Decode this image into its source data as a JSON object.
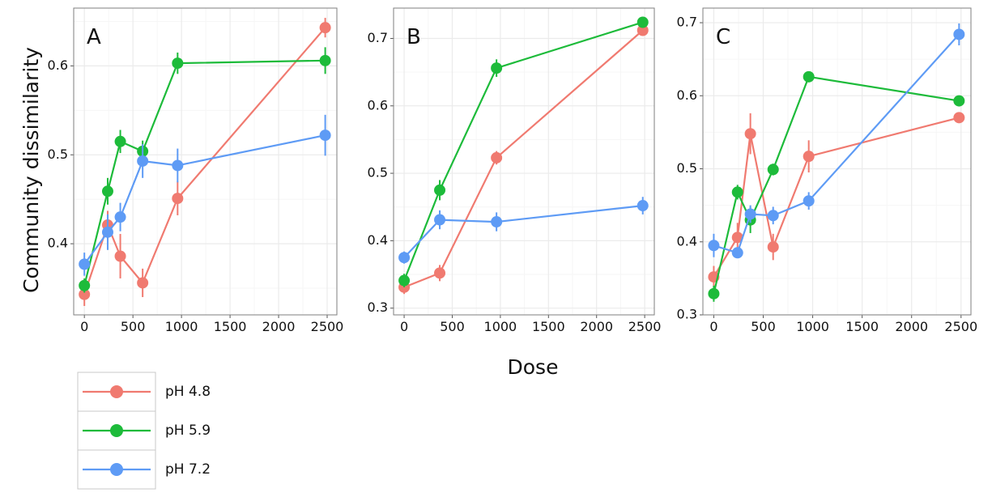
{
  "figure": {
    "ylabel": "Community dissimilarity",
    "xlabel": "Dose"
  },
  "colors": {
    "pH 4.8": "#F07A70",
    "pH 5.9": "#1DBB3A",
    "pH 7.2": "#5E9BF5",
    "grid_major": "#EBEBEB",
    "grid_minor": "#F6F6F6",
    "frame": "#7F7F7F",
    "tick_text": "#111111"
  },
  "legend": {
    "placement": "below panel A",
    "entries": [
      "pH 4.8",
      "pH 5.9",
      "pH 7.2"
    ]
  },
  "chart_data": [
    {
      "type": "line",
      "panel_label": "A",
      "x_ticks": [
        0,
        500,
        1000,
        1500,
        2000,
        2500
      ],
      "xlim": [
        -110,
        2600
      ],
      "y_ticks": [
        0.4,
        0.5,
        0.6
      ],
      "ylim": [
        0.32,
        0.665
      ],
      "grid": true,
      "series": [
        {
          "name": "pH 4.8",
          "x": [
            0,
            240,
            370,
            600,
            960,
            2480
          ],
          "y": [
            0.343,
            0.421,
            0.386,
            0.356,
            0.451,
            0.643
          ],
          "err": [
            0.013,
            0.016,
            0.025,
            0.016,
            0.019,
            0.011
          ]
        },
        {
          "name": "pH 5.9",
          "x": [
            0,
            240,
            370,
            600,
            960,
            2480
          ],
          "y": [
            0.353,
            0.459,
            0.515,
            0.504,
            0.603,
            0.606
          ],
          "err": [
            0.008,
            0.015,
            0.013,
            0.012,
            0.012,
            0.015
          ]
        },
        {
          "name": "pH 7.2",
          "x": [
            0,
            240,
            370,
            600,
            960,
            2480
          ],
          "y": [
            0.377,
            0.413,
            0.43,
            0.493,
            0.488,
            0.522
          ],
          "err": [
            0.013,
            0.02,
            0.016,
            0.019,
            0.019,
            0.023
          ]
        }
      ]
    },
    {
      "type": "line",
      "panel_label": "B",
      "x_ticks": [
        0,
        500,
        1000,
        1500,
        2000,
        2500
      ],
      "xlim": [
        -110,
        2600
      ],
      "y_ticks": [
        0.3,
        0.4,
        0.5,
        0.6,
        0.7
      ],
      "ylim": [
        0.29,
        0.745
      ],
      "grid": true,
      "series": [
        {
          "name": "pH 4.8",
          "x": [
            0,
            370,
            960,
            2480
          ],
          "y": [
            0.331,
            0.352,
            0.523,
            0.712
          ],
          "err": [
            0.01,
            0.012,
            0.01,
            0.006
          ]
        },
        {
          "name": "pH 5.9",
          "x": [
            0,
            370,
            960,
            2480
          ],
          "y": [
            0.341,
            0.475,
            0.656,
            0.724
          ],
          "err": [
            0.01,
            0.015,
            0.013,
            0.006
          ]
        },
        {
          "name": "pH 7.2",
          "x": [
            0,
            370,
            960,
            2480
          ],
          "y": [
            0.375,
            0.431,
            0.428,
            0.452
          ],
          "err": [
            0.009,
            0.014,
            0.014,
            0.013
          ]
        }
      ]
    },
    {
      "type": "line",
      "panel_label": "C",
      "x_ticks": [
        0,
        500,
        1000,
        1500,
        2000,
        2500
      ],
      "xlim": [
        -110,
        2600
      ],
      "y_ticks": [
        0.3,
        0.4,
        0.5,
        0.6,
        0.7
      ],
      "ylim": [
        0.3,
        0.72
      ],
      "grid": true,
      "series": [
        {
          "name": "pH 4.8",
          "x": [
            0,
            240,
            370,
            600,
            960,
            2480
          ],
          "y": [
            0.352,
            0.406,
            0.548,
            0.393,
            0.517,
            0.57
          ],
          "err": [
            0.015,
            0.02,
            0.028,
            0.018,
            0.022,
            0.006
          ]
        },
        {
          "name": "pH 5.9",
          "x": [
            0,
            240,
            370,
            600,
            960,
            2480
          ],
          "y": [
            0.329,
            0.468,
            0.43,
            0.499,
            0.626,
            0.593
          ],
          "err": [
            0.011,
            0.01,
            0.018,
            0.008,
            0.005,
            0.006
          ]
        },
        {
          "name": "pH 7.2",
          "x": [
            0,
            240,
            370,
            600,
            960,
            2480
          ],
          "y": [
            0.395,
            0.385,
            0.438,
            0.436,
            0.456,
            0.684
          ],
          "err": [
            0.016,
            0.005,
            0.012,
            0.012,
            0.012,
            0.015
          ]
        }
      ]
    }
  ]
}
